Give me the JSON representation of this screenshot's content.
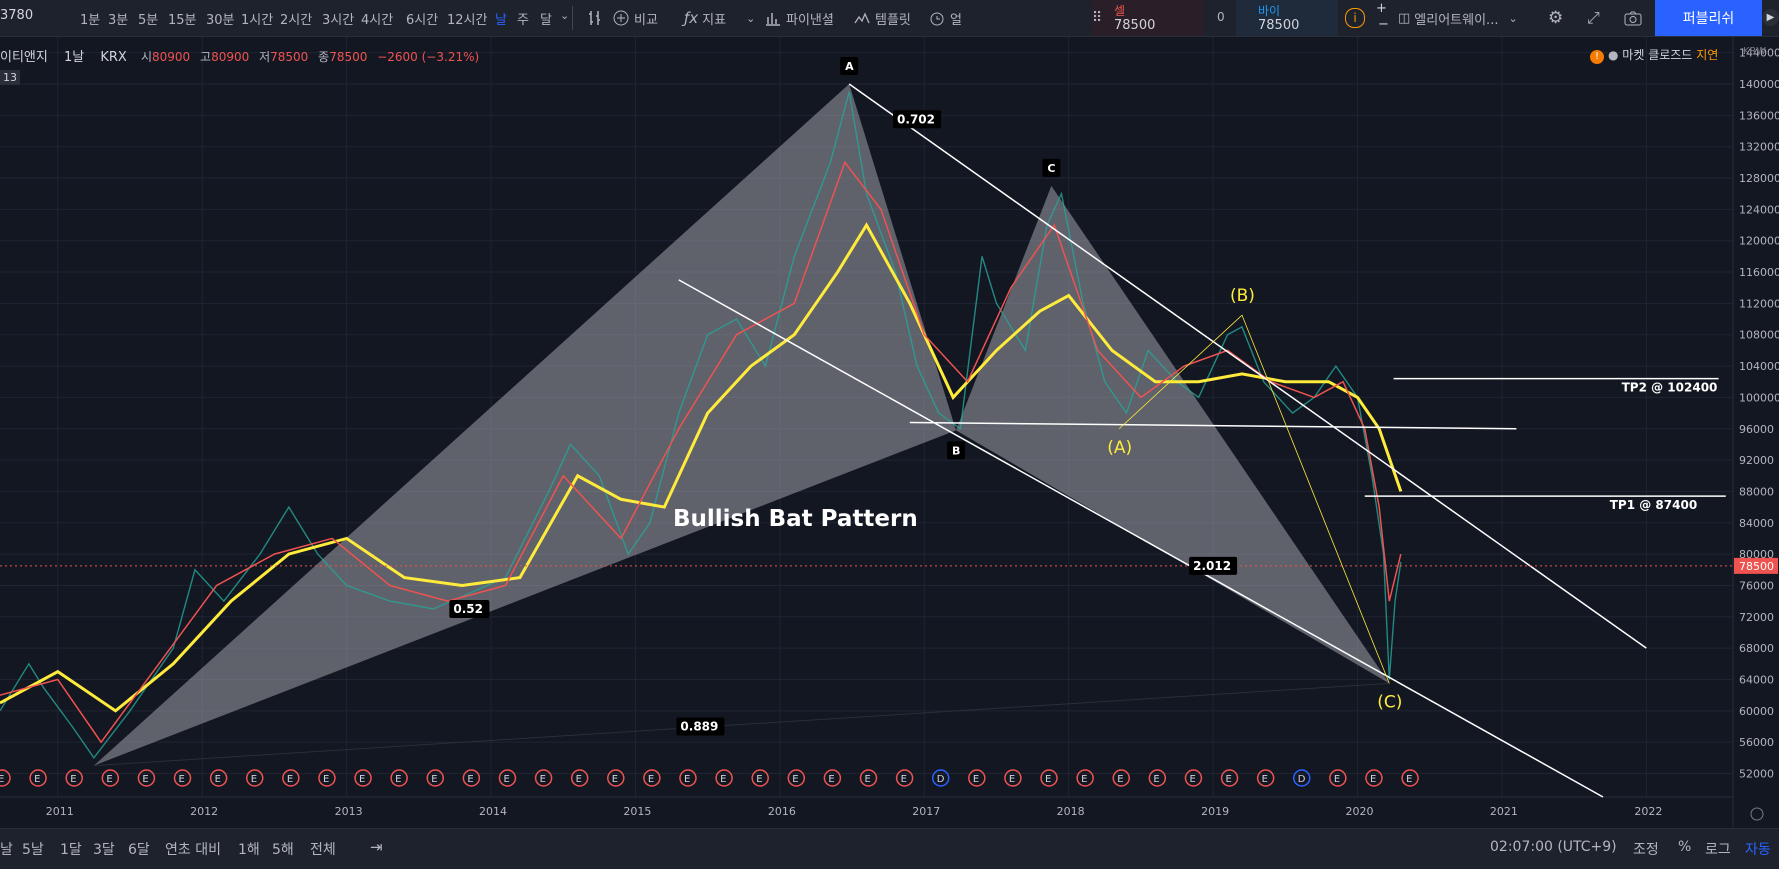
{
  "toolbar": {
    "symbol_fragment": "3780",
    "timeframes": [
      "1분",
      "3분",
      "5분",
      "15분",
      "30분",
      "1시간",
      "2시간",
      "3시간",
      "4시간",
      "6시간",
      "12시간",
      "날",
      "주",
      "달"
    ],
    "active_timeframe": "날",
    "compare_label": "비교",
    "indicators_label": "지표",
    "financials_label": "파이낸셜",
    "templates_label": "템플릿",
    "alert_fragment": "얼",
    "sell_label": "셀",
    "sell_price": "78500",
    "spread": "0",
    "buy_label": "바이",
    "buy_price": "78500",
    "layout_label": "엘리어트웨이...",
    "publish_label": "퍼블리쉬"
  },
  "legend": {
    "title": "이티앤지",
    "interval": "1날",
    "exchange": "KRX",
    "open_label": "시",
    "open": "80900",
    "high_label": "고",
    "high": "80900",
    "low_label": "저",
    "low": "78500",
    "close_label": "종",
    "close": "78500",
    "change": "−2600 (−3.21%)",
    "vol_badge": "13"
  },
  "market_status": {
    "text": "마켓 클로즈드",
    "delay": "지연"
  },
  "chart_data": {
    "type": "line",
    "currency_label": "KRW",
    "last_price": 78500,
    "last_price_label": "78500",
    "y_ticks": [
      52000,
      56000,
      60000,
      64000,
      68000,
      72000,
      76000,
      80000,
      84000,
      88000,
      92000,
      96000,
      100000,
      104000,
      108000,
      112000,
      116000,
      120000,
      124000,
      128000,
      132000,
      136000,
      140000,
      144000
    ],
    "ylim": [
      49000,
      146000
    ],
    "x_ticks": [
      "2011",
      "2012",
      "2013",
      "2014",
      "2015",
      "2016",
      "2017",
      "2018",
      "2019",
      "2020",
      "2021",
      "2022"
    ],
    "xlim": [
      2010.6,
      2022.6
    ],
    "price_series": {
      "x": [
        2010.6,
        2010.8,
        2010.9,
        2011.1,
        2011.25,
        2011.5,
        2011.8,
        2011.95,
        2012.15,
        2012.4,
        2012.6,
        2012.8,
        2013.0,
        2013.3,
        2013.6,
        2013.85,
        2014.1,
        2014.4,
        2014.55,
        2014.75,
        2014.95,
        2015.1,
        2015.3,
        2015.5,
        2015.7,
        2015.9,
        2016.1,
        2016.35,
        2016.48,
        2016.6,
        2016.8,
        2016.95,
        2017.1,
        2017.25,
        2017.4,
        2017.5,
        2017.7,
        2017.85,
        2017.95,
        2018.1,
        2018.25,
        2018.4,
        2018.55,
        2018.75,
        2018.9,
        2019.1,
        2019.2,
        2019.35,
        2019.55,
        2019.7,
        2019.85,
        2020.0,
        2020.1,
        2020.18,
        2020.22,
        2020.26,
        2020.3
      ],
      "y": [
        60000,
        66000,
        63000,
        58000,
        54000,
        60000,
        68000,
        78000,
        74000,
        80000,
        86000,
        80000,
        76000,
        74000,
        73000,
        75000,
        77000,
        88000,
        94000,
        90000,
        80000,
        84000,
        98000,
        108000,
        110000,
        104000,
        118000,
        130000,
        139000,
        126000,
        116000,
        104000,
        98000,
        96000,
        118000,
        112000,
        106000,
        122000,
        126000,
        112000,
        102000,
        98000,
        106000,
        102000,
        100000,
        108000,
        109000,
        102000,
        98000,
        100000,
        104000,
        100000,
        90000,
        80000,
        64000,
        74000,
        79000
      ],
      "color": "#26a69a"
    },
    "ma_series": [
      {
        "color": "#ffeb3b",
        "x": [
          2010.6,
          2011.0,
          2011.4,
          2011.8,
          2012.2,
          2012.6,
          2013.0,
          2013.4,
          2013.8,
          2014.2,
          2014.6,
          2014.9,
          2015.2,
          2015.5,
          2015.8,
          2016.1,
          2016.4,
          2016.6,
          2016.9,
          2017.2,
          2017.5,
          2017.8,
          2018.0,
          2018.3,
          2018.6,
          2018.9,
          2019.2,
          2019.5,
          2019.8,
          2020.0,
          2020.15,
          2020.3
        ],
        "y": [
          61000,
          65000,
          60000,
          66000,
          74000,
          80000,
          82000,
          77000,
          76000,
          77000,
          90000,
          87000,
          86000,
          98000,
          104000,
          108000,
          116000,
          122000,
          112000,
          100000,
          106000,
          111000,
          113000,
          106000,
          102000,
          102000,
          103000,
          102000,
          102000,
          100000,
          96000,
          88000
        ]
      },
      {
        "color": "#ef5350",
        "x": [
          2010.6,
          2011.0,
          2011.3,
          2011.7,
          2012.1,
          2012.5,
          2012.9,
          2013.3,
          2013.7,
          2014.1,
          2014.5,
          2014.9,
          2015.3,
          2015.7,
          2016.1,
          2016.45,
          2016.7,
          2017.0,
          2017.3,
          2017.6,
          2017.9,
          2018.2,
          2018.5,
          2018.8,
          2019.1,
          2019.4,
          2019.7,
          2019.9,
          2020.05,
          2020.15,
          2020.22,
          2020.3
        ],
        "y": [
          62000,
          64000,
          56000,
          66000,
          76000,
          80000,
          82000,
          76000,
          74000,
          76000,
          90000,
          82000,
          96000,
          108000,
          112000,
          130000,
          124000,
          108000,
          102000,
          114000,
          122000,
          106000,
          100000,
          104000,
          106000,
          102000,
          100000,
          102000,
          96000,
          86000,
          74000,
          80000
        ]
      }
    ],
    "harmonic_points": [
      {
        "label": "A",
        "x": 2016.48,
        "y": 140000
      },
      {
        "label": "B",
        "x": 2017.22,
        "y": 95800
      },
      {
        "label": "C",
        "x": 2017.88,
        "y": 127000
      },
      {
        "label": "(A)",
        "x": 2018.35,
        "y": 96000
      },
      {
        "label": "(B)",
        "x": 2019.2,
        "y": 110500
      },
      {
        "label": "(C)",
        "x": 2020.22,
        "y": 63500
      }
    ],
    "pattern_start": {
      "x": 2011.25,
      "y": 53000
    },
    "ratio_labels": [
      {
        "text": "0.702",
        "x": 2016.95,
        "y": 135500
      },
      {
        "text": "0.52",
        "x": 2013.85,
        "y": 73000
      },
      {
        "text": "2.012",
        "x": 2019.0,
        "y": 78500
      },
      {
        "text": "0.889",
        "x": 2015.45,
        "y": 58000
      }
    ],
    "annotation": "Bullish Bat Pattern",
    "targets": [
      {
        "label": "TP2 @ 102400",
        "value": 102400,
        "x_start": 2020.25,
        "x_end": 2022.5
      },
      {
        "label": "TP1 @ 87400",
        "value": 87400,
        "x_start": 2020.05,
        "x_end": 2022.55
      }
    ],
    "channel_upper": [
      {
        "x": 2016.48,
        "y": 140000
      },
      {
        "x": 2022.0,
        "y": 68000
      }
    ],
    "channel_lower": [
      {
        "x": 2015.3,
        "y": 115000
      },
      {
        "x": 2021.7,
        "y": 49000
      }
    ],
    "support_line": [
      {
        "x": 2016.9,
        "y": 96800
      },
      {
        "x": 2021.1,
        "y": 96000
      }
    ],
    "earnings_marker": "E",
    "dividend_marker": "D"
  },
  "bottom": {
    "ranges": [
      "날",
      "5날",
      "1달",
      "3달",
      "6달",
      "연초 대비",
      "1해",
      "5해",
      "전체"
    ],
    "time": "02:07:00 (UTC+9)",
    "adjust": "조정",
    "percent": "%",
    "log": "로그",
    "auto": "자동"
  }
}
